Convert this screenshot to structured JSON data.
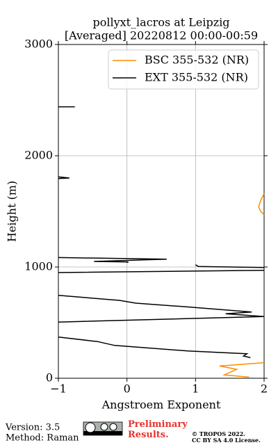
{
  "chart_data": {
    "type": "line",
    "title": "pollyxt_lacros at Leipzig",
    "subtitle": "[Averaged] 20220812 00:00-00:59",
    "xlabel": "Angstroem Exponent",
    "ylabel": "Height (m)",
    "xlim": [
      -1,
      2
    ],
    "ylim": [
      0,
      3000
    ],
    "xticks": [
      {
        "value": -1,
        "label": "−1"
      },
      0,
      1,
      2
    ],
    "yticks": [
      0,
      1000,
      2000,
      3000
    ],
    "grid": true,
    "legend": "upper right",
    "series": [
      {
        "name": "BSC 355-532 (NR)",
        "color": "#ff8c00",
        "values": [
          1.78,
          1.42,
          1.6,
          1.35,
          2.0,
          null,
          2.0,
          1.95,
          1.92,
          1.95,
          2.0
        ],
        "heights": [
          10,
          30,
          80,
          110,
          140,
          null,
          1660,
          1600,
          1540,
          1500,
          1470
        ]
      },
      {
        "name": "EXT 355-532 (NR)",
        "color": "#000000",
        "values": [
          1.8,
          1.7,
          1.75,
          0.89,
          -0.18,
          -0.43,
          -1,
          null,
          -1,
          2.0,
          1.44,
          1.82,
          0.8,
          0.13,
          -0.11,
          -1,
          null,
          -1,
          2.0,
          null,
          2.0,
          1.04,
          1.0,
          null,
          -1,
          0.58,
          -0.48,
          0.02,
          0.0,
          null,
          -1,
          -0.84,
          -1,
          null,
          -1,
          -0.76
        ],
        "heights": [
          185,
          200,
          220,
          245,
          295,
          330,
          370,
          null,
          505,
          555,
          580,
          595,
          645,
          675,
          700,
          745,
          null,
          950,
          970,
          null,
          995,
          1005,
          1020,
          null,
          1085,
          1070,
          1050,
          1045,
          1040,
          null,
          1810,
          1800,
          1795,
          null,
          2440,
          2440
        ]
      }
    ]
  },
  "footer": {
    "version": "Version: 3.5",
    "method": "Method: Raman",
    "status": "Preliminary\nResults.",
    "copyright": "© TROPOS 2022.",
    "license": "CC BY SA 4.0 License."
  }
}
